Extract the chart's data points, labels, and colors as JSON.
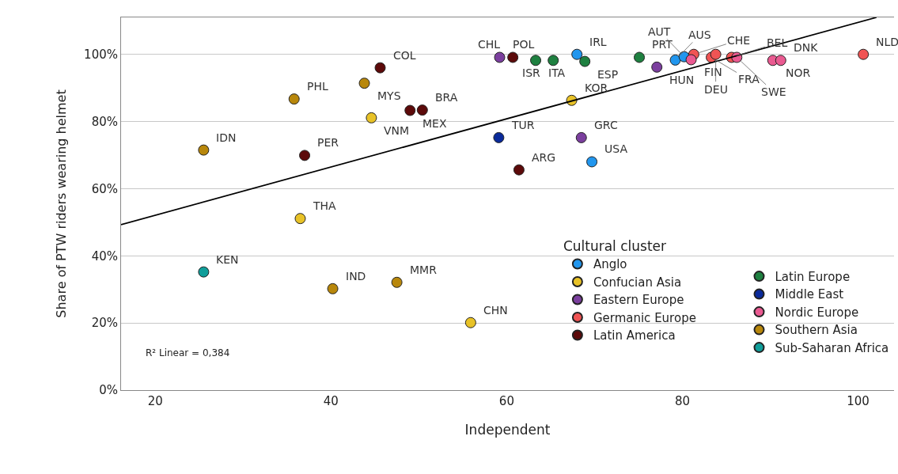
{
  "chart_data": {
    "type": "scatter",
    "xlabel": "Independent",
    "ylabel": "Share of PTW riders wearing helmet",
    "legend_title": "Cultural cluster",
    "xlim": [
      16.1,
      104.1
    ],
    "xticks": [
      20,
      40,
      60,
      80,
      100
    ],
    "ylim": [
      0,
      111
    ],
    "yticks": [
      {
        "value": 0,
        "label": "0%"
      },
      {
        "value": 20,
        "label": "20%"
      },
      {
        "value": 40,
        "label": "40%"
      },
      {
        "value": 60,
        "label": "60%"
      },
      {
        "value": 80,
        "label": "80%"
      },
      {
        "value": 100,
        "label": "100%"
      }
    ],
    "grid": "y",
    "legend": "bottom right",
    "marker": "circle",
    "series": [
      {
        "name": "Anglo",
        "color": "#2196ee",
        "x": [
          68.0,
          79.2,
          80.2,
          69.7
        ],
        "values": [
          100,
          98.3,
          99.3,
          68.0
        ]
      },
      {
        "name": "Confucian Asia",
        "color": "#e8c227",
        "x": [
          67.4,
          44.6,
          36.5,
          55.9
        ],
        "values": [
          86.3,
          81.1,
          51.1,
          20.1
        ]
      },
      {
        "name": "Eastern Europe",
        "color": "#7b3f9e",
        "x": [
          59.2,
          77.1,
          68.5
        ],
        "values": [
          99.1,
          96.2,
          75.2
        ]
      },
      {
        "name": "Germanic Europe",
        "color": "#f05454",
        "x": [
          81.3,
          83.3,
          83.8,
          85.6,
          100.6
        ],
        "values": [
          100,
          99.1,
          100,
          99.1,
          100
        ]
      },
      {
        "name": "Latin America",
        "color": "#5c0a0a",
        "x": [
          60.7,
          45.6,
          49.0,
          50.4,
          37.0,
          61.4
        ],
        "values": [
          99.1,
          96.0,
          83.3,
          83.4,
          69.9,
          65.6
        ]
      },
      {
        "name": "Latin Europe",
        "color": "#1e8040",
        "x": [
          63.3,
          65.3,
          68.9,
          75.1
        ],
        "values": [
          98.2,
          98.2,
          97.9,
          99.1
        ]
      },
      {
        "name": "Middle East",
        "color": "#0a2a9a",
        "x": [
          59.1
        ],
        "values": [
          75.2
        ]
      },
      {
        "name": "Nordic Europe",
        "color": "#ea5a91",
        "x": [
          81.0,
          86.2,
          90.3,
          91.2
        ],
        "values": [
          98.4,
          99.1,
          98.2,
          98.2
        ]
      },
      {
        "name": "Southern Asia",
        "color": "#b8870b",
        "x": [
          43.8,
          35.8,
          25.5,
          40.2,
          47.5
        ],
        "values": [
          91.4,
          86.7,
          71.5,
          30.2,
          32.1
        ]
      },
      {
        "name": "Sub-Saharan Africa",
        "color": "#109e9a",
        "x": [
          25.5
        ],
        "values": [
          35.2
        ]
      },
      {
        "type": "line",
        "color": "#000000",
        "marker": "none",
        "x": [
          16.1,
          102.1
        ],
        "values": [
          49.3,
          111.0
        ]
      }
    ],
    "annotations": [
      "R² Linear = 0,384",
      {
        "text": "POL",
        "x": 59.2,
        "y": 99.1
      },
      {
        "text": "CHL",
        "x": 60.7,
        "y": 99.1
      },
      {
        "text": "ITA",
        "x": 63.3,
        "y": 98.2
      },
      {
        "text": "ISR",
        "x": 65.3,
        "y": 98.2
      },
      {
        "text": "IRL",
        "x": 68.0,
        "y": 100
      },
      {
        "text": "ESP",
        "x": 68.9,
        "y": 97.9
      },
      {
        "text": "PRT",
        "x": 75.1,
        "y": 99.1
      },
      {
        "text": "HUN",
        "x": 77.1,
        "y": 96.2
      },
      {
        "text": "AUS",
        "x": 79.2,
        "y": 98.3
      },
      {
        "text": "AUT",
        "x": 80.2,
        "y": 99.3
      },
      {
        "text": "FIN",
        "x": 81.0,
        "y": 98.4
      },
      {
        "text": "CHE",
        "x": 81.3,
        "y": 100
      },
      {
        "text": "FRA",
        "x": 83.3,
        "y": 99.1
      },
      {
        "text": "DEU",
        "x": 83.8,
        "y": 100
      },
      {
        "text": "BEL",
        "x": 85.6,
        "y": 99.1
      },
      {
        "text": "SWE",
        "x": 86.2,
        "y": 99.1
      },
      {
        "text": "NOR",
        "x": 90.3,
        "y": 98.2
      },
      {
        "text": "DNK",
        "x": 91.2,
        "y": 98.2
      },
      {
        "text": "NLD",
        "x": 100.6,
        "y": 100
      },
      {
        "text": "KOR",
        "x": 67.4,
        "y": 86.3
      },
      {
        "text": "TUR",
        "x": 59.1,
        "y": 75.2
      },
      {
        "text": "GRC",
        "x": 68.5,
        "y": 75.2
      },
      {
        "text": "USA",
        "x": 69.7,
        "y": 68.0
      },
      {
        "text": "ARG",
        "x": 61.4,
        "y": 65.6
      },
      {
        "text": "COL",
        "x": 45.6,
        "y": 96.0
      },
      {
        "text": "MYS",
        "x": 43.8,
        "y": 91.4
      },
      {
        "text": "PHL",
        "x": 35.8,
        "y": 86.7
      },
      {
        "text": "VNM",
        "x": 44.6,
        "y": 81.1
      },
      {
        "text": "BRA",
        "x": 50.4,
        "y": 83.4
      },
      {
        "text": "MEX",
        "x": 49.0,
        "y": 83.3
      },
      {
        "text": "IDN",
        "x": 25.5,
        "y": 71.5
      },
      {
        "text": "PER",
        "x": 37.0,
        "y": 69.9
      },
      {
        "text": "THA",
        "x": 36.5,
        "y": 51.1
      },
      {
        "text": "KEN",
        "x": 25.5,
        "y": 35.2
      },
      {
        "text": "IND",
        "x": 40.2,
        "y": 30.2
      },
      {
        "text": "MMR",
        "x": 47.5,
        "y": 32.1
      },
      {
        "text": "CHN",
        "x": 55.9,
        "y": 20.1
      }
    ]
  }
}
